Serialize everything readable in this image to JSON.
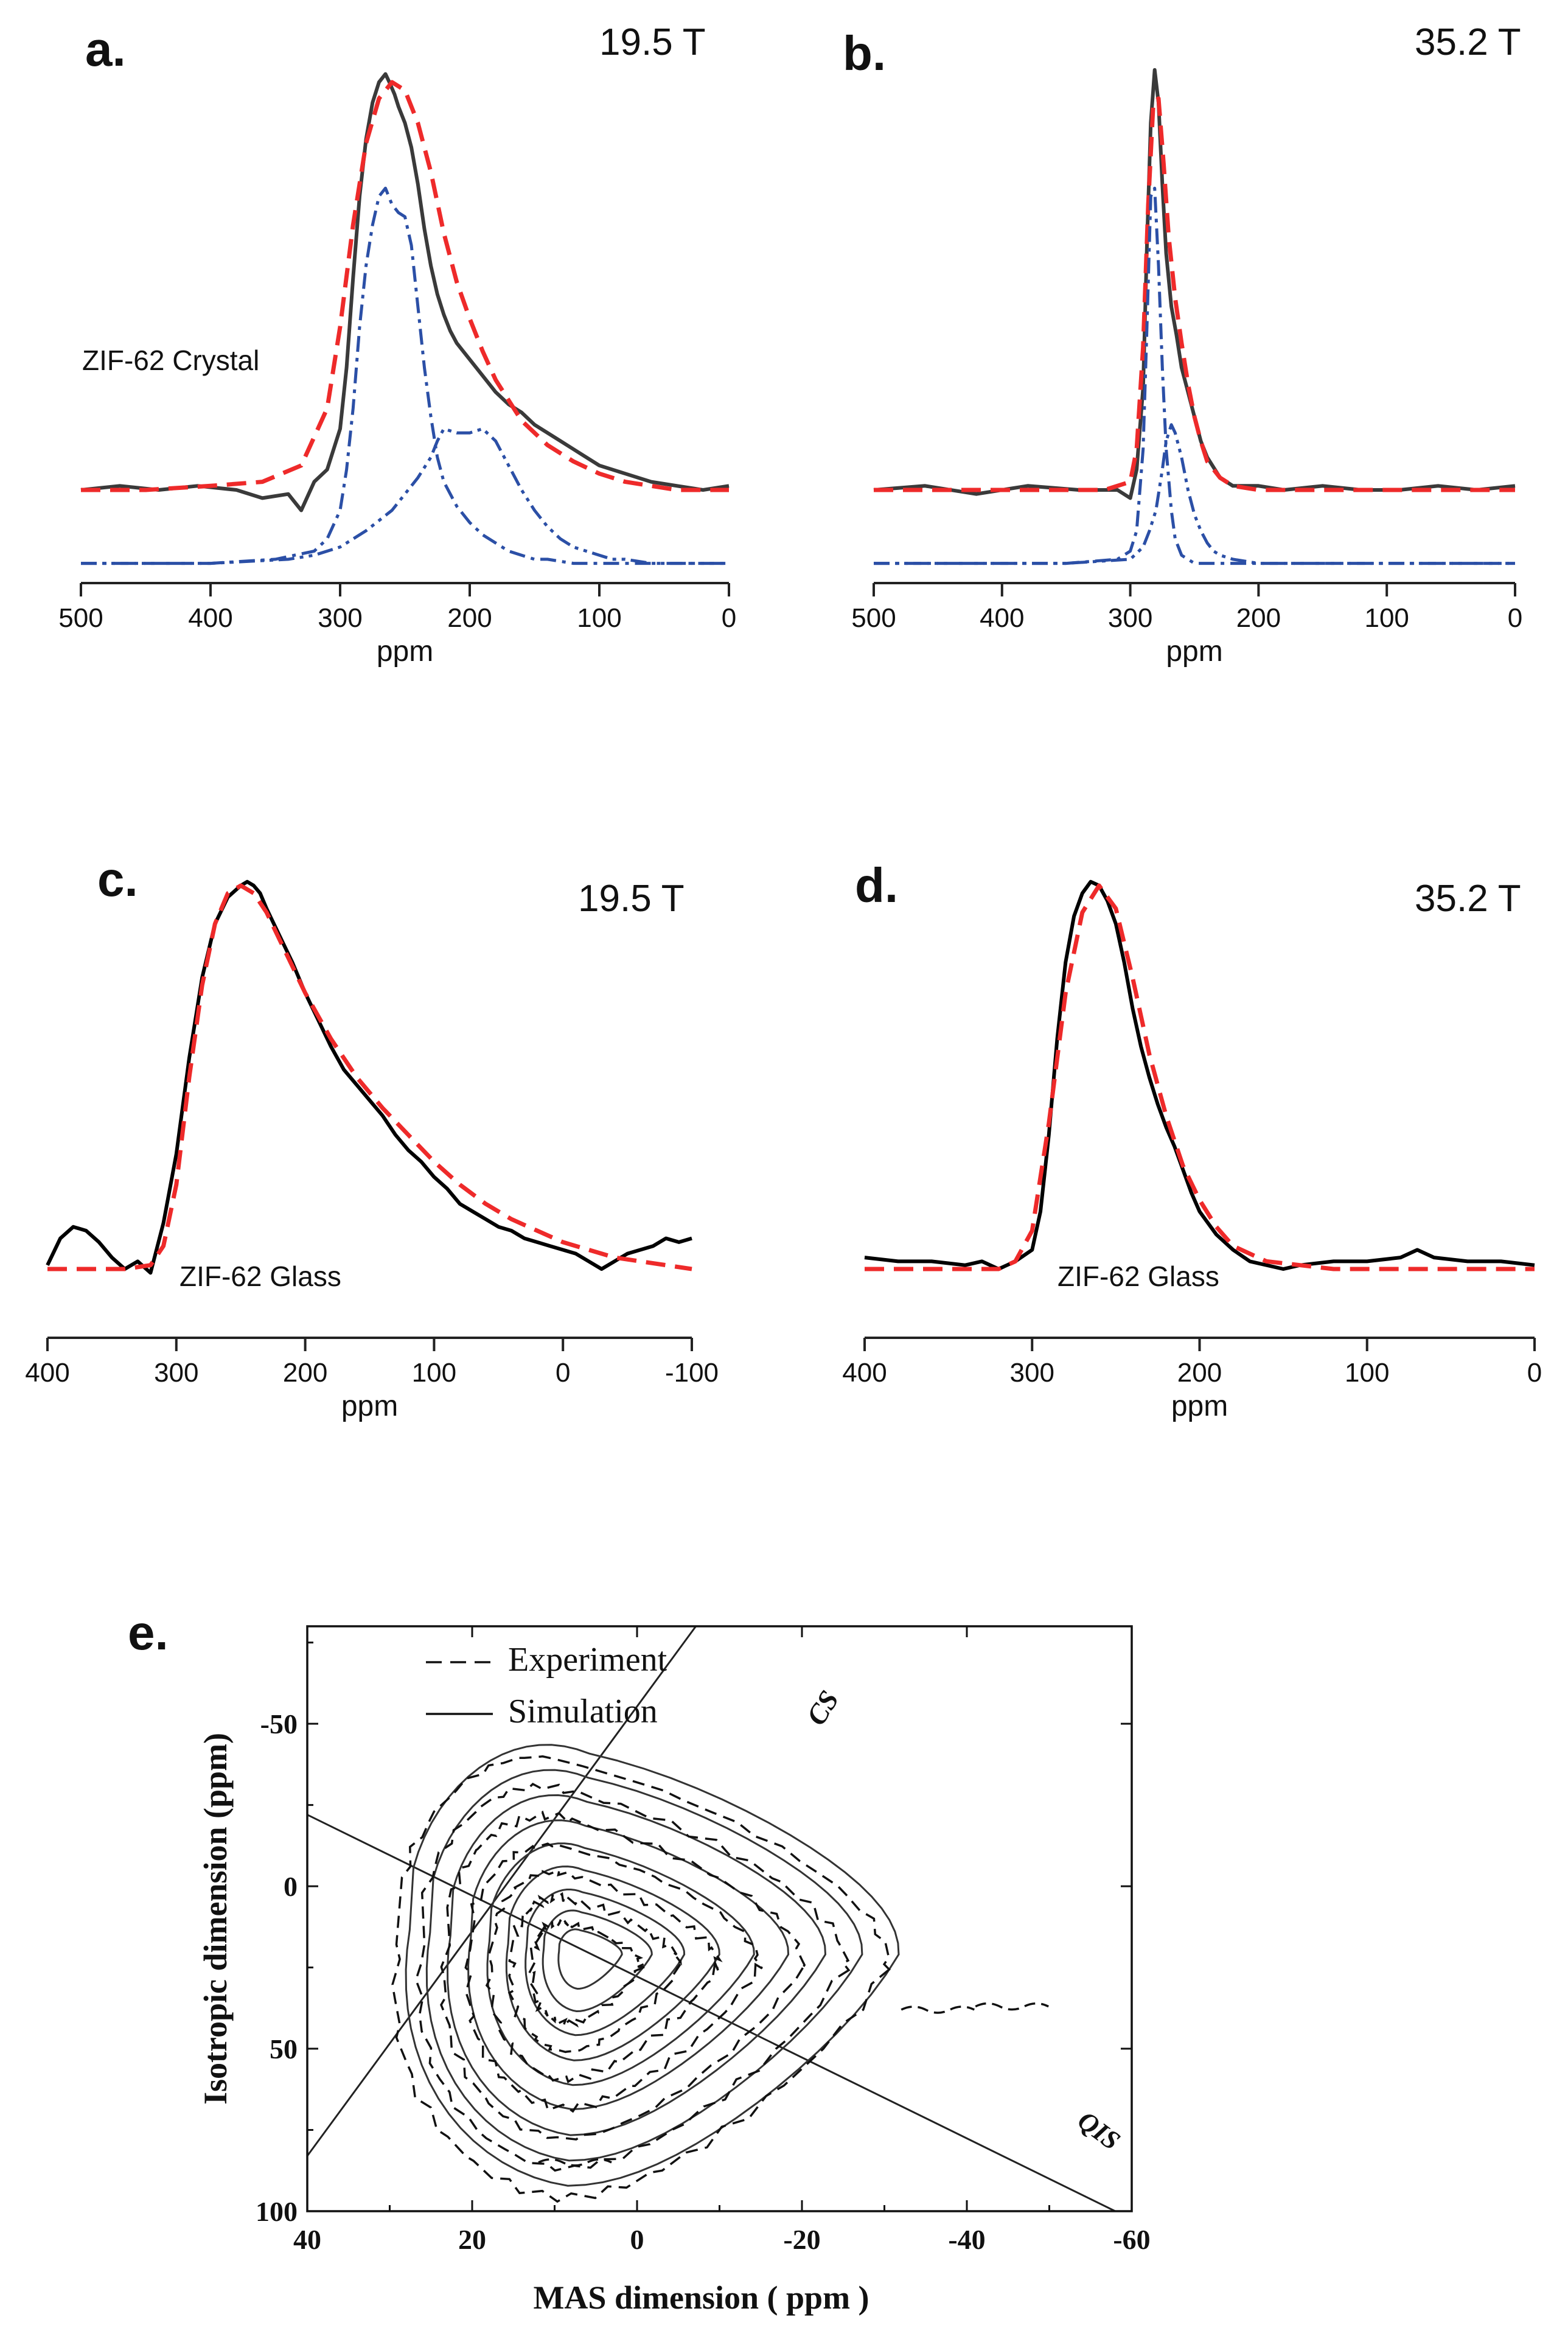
{
  "colors": {
    "experiment": "#3a3a3a",
    "experiment_glass": "#000000",
    "fit": "#ee2a2a",
    "component": "#2b4fa6",
    "axis": "#222222"
  },
  "chart_data": [
    {
      "id": "a",
      "type": "line",
      "panel_label": "a.",
      "field_label": "19.5 T",
      "annotation": "ZIF-62 Crystal",
      "xlabel": "ppm",
      "xlim": [
        500,
        0
      ],
      "x_reversed": true,
      "x_ticks": [
        500,
        400,
        300,
        200,
        100,
        0
      ],
      "grid": false,
      "series": [
        {
          "role": "experiment",
          "style": "solid",
          "color": "#3a3a3a",
          "x": [
            500,
            470,
            440,
            410,
            380,
            360,
            340,
            330,
            320,
            310,
            300,
            295,
            290,
            285,
            280,
            275,
            270,
            265,
            262,
            258,
            255,
            250,
            245,
            240,
            235,
            230,
            225,
            220,
            215,
            210,
            200,
            190,
            180,
            170,
            160,
            150,
            140,
            130,
            120,
            110,
            100,
            80,
            60,
            40,
            20,
            0
          ],
          "y": [
            0.0,
            0.01,
            0.0,
            0.01,
            0.0,
            -0.02,
            -0.01,
            -0.05,
            0.02,
            0.05,
            0.15,
            0.3,
            0.52,
            0.72,
            0.86,
            0.95,
            1.0,
            1.02,
            1.0,
            0.97,
            0.94,
            0.9,
            0.84,
            0.75,
            0.64,
            0.55,
            0.48,
            0.43,
            0.39,
            0.36,
            0.32,
            0.28,
            0.24,
            0.21,
            0.19,
            0.16,
            0.14,
            0.12,
            0.1,
            0.08,
            0.06,
            0.04,
            0.02,
            0.01,
            0.0,
            0.01
          ]
        },
        {
          "role": "fit",
          "style": "dashed",
          "color": "#ee2a2a",
          "x": [
            500,
            450,
            400,
            360,
            330,
            310,
            300,
            290,
            280,
            270,
            260,
            250,
            240,
            230,
            220,
            210,
            200,
            190,
            180,
            170,
            160,
            150,
            140,
            120,
            100,
            80,
            60,
            40,
            20,
            0
          ],
          "y": [
            0.0,
            0.0,
            0.01,
            0.02,
            0.06,
            0.2,
            0.4,
            0.65,
            0.85,
            0.96,
            1.0,
            0.98,
            0.9,
            0.78,
            0.63,
            0.51,
            0.42,
            0.34,
            0.27,
            0.22,
            0.17,
            0.14,
            0.11,
            0.07,
            0.04,
            0.02,
            0.01,
            0.0,
            0.0,
            0.0
          ]
        },
        {
          "role": "component-1",
          "style": "dash-dot",
          "color": "#2b4fa6",
          "x": [
            500,
            400,
            350,
            320,
            310,
            300,
            295,
            290,
            285,
            280,
            275,
            270,
            265,
            260,
            255,
            250,
            245,
            240,
            235,
            230,
            225,
            220,
            210,
            200,
            190,
            180,
            170,
            160,
            150,
            140,
            120,
            100,
            80,
            60,
            40,
            0
          ],
          "y": [
            -0.18,
            -0.18,
            -0.17,
            -0.15,
            -0.12,
            -0.05,
            0.05,
            0.2,
            0.4,
            0.55,
            0.65,
            0.72,
            0.74,
            0.7,
            0.68,
            0.67,
            0.6,
            0.45,
            0.3,
            0.18,
            0.08,
            0.02,
            -0.04,
            -0.08,
            -0.11,
            -0.13,
            -0.15,
            -0.16,
            -0.17,
            -0.17,
            -0.18,
            -0.18,
            -0.18,
            -0.18,
            -0.18,
            -0.18
          ]
        },
        {
          "role": "component-2",
          "style": "dash-dot-dot",
          "color": "#2b4fa6",
          "x": [
            500,
            400,
            340,
            320,
            300,
            280,
            260,
            250,
            240,
            230,
            225,
            220,
            210,
            200,
            190,
            180,
            170,
            160,
            150,
            140,
            130,
            120,
            110,
            100,
            90,
            80,
            60,
            40,
            20,
            0
          ],
          "y": [
            -0.18,
            -0.18,
            -0.17,
            -0.16,
            -0.14,
            -0.1,
            -0.05,
            -0.01,
            0.03,
            0.08,
            0.12,
            0.15,
            0.14,
            0.14,
            0.15,
            0.12,
            0.06,
            0.0,
            -0.05,
            -0.09,
            -0.12,
            -0.14,
            -0.15,
            -0.16,
            -0.17,
            -0.17,
            -0.18,
            -0.18,
            -0.18,
            -0.18
          ]
        }
      ]
    },
    {
      "id": "b",
      "type": "line",
      "panel_label": "b.",
      "field_label": "35.2 T",
      "xlabel": "ppm",
      "xlim": [
        500,
        0
      ],
      "x_reversed": true,
      "x_ticks": [
        500,
        400,
        300,
        200,
        100,
        0
      ],
      "grid": false,
      "series": [
        {
          "role": "experiment",
          "style": "solid",
          "color": "#3a3a3a",
          "x": [
            500,
            460,
            420,
            380,
            340,
            310,
            300,
            295,
            290,
            287,
            284,
            281,
            278,
            275,
            272,
            268,
            264,
            260,
            255,
            250,
            245,
            240,
            230,
            220,
            200,
            180,
            150,
            120,
            90,
            60,
            30,
            0
          ],
          "y": [
            0.0,
            0.01,
            -0.01,
            0.01,
            0.0,
            0.0,
            -0.02,
            0.05,
            0.25,
            0.6,
            0.9,
            1.03,
            0.95,
            0.75,
            0.58,
            0.45,
            0.38,
            0.3,
            0.24,
            0.18,
            0.12,
            0.08,
            0.03,
            0.01,
            0.01,
            0.0,
            0.01,
            0.0,
            0.0,
            0.01,
            0.0,
            0.01
          ]
        },
        {
          "role": "fit",
          "style": "dashed",
          "color": "#ee2a2a",
          "x": [
            500,
            400,
            320,
            300,
            295,
            290,
            286,
            282,
            278,
            274,
            270,
            265,
            260,
            255,
            250,
            245,
            240,
            230,
            220,
            200,
            150,
            100,
            0
          ],
          "y": [
            0.0,
            0.0,
            0.0,
            0.02,
            0.1,
            0.35,
            0.7,
            0.95,
            0.96,
            0.8,
            0.62,
            0.47,
            0.36,
            0.26,
            0.18,
            0.12,
            0.07,
            0.03,
            0.01,
            0.0,
            0.0,
            0.0,
            0.0
          ]
        },
        {
          "role": "component-1",
          "style": "dash-dot",
          "color": "#2b4fa6",
          "x": [
            500,
            350,
            310,
            300,
            295,
            290,
            287,
            284,
            281,
            278,
            275,
            272,
            268,
            265,
            260,
            255,
            250,
            240,
            220,
            0
          ],
          "y": [
            -0.18,
            -0.18,
            -0.17,
            -0.15,
            -0.1,
            0.1,
            0.4,
            0.72,
            0.74,
            0.55,
            0.3,
            0.1,
            -0.05,
            -0.12,
            -0.16,
            -0.17,
            -0.18,
            -0.18,
            -0.18,
            -0.18
          ]
        },
        {
          "role": "component-2",
          "style": "dash-dot-dot",
          "color": "#2b4fa6",
          "x": [
            500,
            350,
            300,
            290,
            285,
            280,
            275,
            272,
            268,
            265,
            260,
            255,
            250,
            245,
            240,
            235,
            230,
            220,
            200,
            0
          ],
          "y": [
            -0.18,
            -0.18,
            -0.17,
            -0.14,
            -0.1,
            -0.05,
            0.05,
            0.12,
            0.16,
            0.14,
            0.08,
            0.0,
            -0.06,
            -0.1,
            -0.13,
            -0.15,
            -0.16,
            -0.17,
            -0.18,
            -0.18
          ]
        }
      ]
    },
    {
      "id": "c",
      "type": "line",
      "panel_label": "c.",
      "field_label": "19.5 T",
      "annotation": "ZIF-62 Glass",
      "xlabel": "ppm",
      "xlim": [
        400,
        -100
      ],
      "x_reversed": true,
      "x_ticks": [
        400,
        300,
        200,
        100,
        0,
        -100
      ],
      "grid": false,
      "series": [
        {
          "role": "experiment",
          "style": "solid",
          "color": "#000000",
          "x": [
            400,
            390,
            380,
            370,
            360,
            350,
            340,
            330,
            320,
            310,
            300,
            290,
            280,
            270,
            260,
            250,
            245,
            240,
            235,
            230,
            220,
            210,
            200,
            190,
            180,
            170,
            160,
            150,
            140,
            130,
            120,
            110,
            100,
            90,
            80,
            70,
            60,
            50,
            40,
            30,
            20,
            10,
            0,
            -10,
            -20,
            -30,
            -40,
            -50,
            -60,
            -70,
            -80,
            -90,
            -100
          ],
          "y": [
            0.01,
            0.08,
            0.11,
            0.1,
            0.07,
            0.03,
            0.0,
            0.02,
            -0.01,
            0.12,
            0.3,
            0.55,
            0.76,
            0.9,
            0.97,
            1.0,
            1.01,
            1.0,
            0.98,
            0.94,
            0.87,
            0.8,
            0.72,
            0.65,
            0.58,
            0.52,
            0.48,
            0.44,
            0.4,
            0.35,
            0.31,
            0.28,
            0.24,
            0.21,
            0.17,
            0.15,
            0.13,
            0.11,
            0.1,
            0.08,
            0.07,
            0.06,
            0.05,
            0.04,
            0.02,
            0.0,
            0.02,
            0.04,
            0.05,
            0.06,
            0.08,
            0.07,
            0.08
          ]
        },
        {
          "role": "fit",
          "style": "dashed",
          "color": "#ee2a2a",
          "x": [
            400,
            380,
            360,
            340,
            320,
            310,
            300,
            290,
            280,
            270,
            260,
            250,
            240,
            230,
            220,
            200,
            180,
            160,
            140,
            120,
            100,
            80,
            60,
            40,
            20,
            0,
            -20,
            -40,
            -60,
            -80,
            -100
          ],
          "y": [
            0.0,
            0.0,
            0.0,
            0.0,
            0.01,
            0.06,
            0.22,
            0.5,
            0.74,
            0.9,
            0.98,
            1.0,
            0.98,
            0.93,
            0.86,
            0.72,
            0.6,
            0.5,
            0.42,
            0.35,
            0.28,
            0.22,
            0.17,
            0.13,
            0.1,
            0.07,
            0.05,
            0.03,
            0.02,
            0.01,
            0.0
          ]
        }
      ]
    },
    {
      "id": "d",
      "type": "line",
      "panel_label": "d.",
      "field_label": "35.2 T",
      "annotation": "ZIF-62 Glass",
      "xlabel": "ppm",
      "xlim": [
        400,
        0
      ],
      "x_reversed": true,
      "x_ticks": [
        400,
        300,
        200,
        100,
        0
      ],
      "grid": false,
      "series": [
        {
          "role": "experiment",
          "style": "solid",
          "color": "#000000",
          "x": [
            400,
            380,
            360,
            340,
            330,
            320,
            310,
            300,
            295,
            290,
            285,
            280,
            275,
            270,
            265,
            260,
            255,
            250,
            245,
            240,
            235,
            230,
            225,
            220,
            215,
            210,
            205,
            200,
            190,
            180,
            170,
            160,
            150,
            140,
            120,
            100,
            80,
            70,
            60,
            40,
            20,
            0
          ],
          "y": [
            0.03,
            0.02,
            0.02,
            0.01,
            0.02,
            0.0,
            0.02,
            0.05,
            0.15,
            0.35,
            0.6,
            0.8,
            0.92,
            0.98,
            1.01,
            1.0,
            0.96,
            0.9,
            0.8,
            0.68,
            0.58,
            0.5,
            0.43,
            0.37,
            0.32,
            0.26,
            0.2,
            0.15,
            0.09,
            0.05,
            0.02,
            0.01,
            0.0,
            0.01,
            0.02,
            0.02,
            0.03,
            0.05,
            0.03,
            0.02,
            0.02,
            0.01
          ]
        },
        {
          "role": "fit",
          "style": "dashed",
          "color": "#ee2a2a",
          "x": [
            400,
            350,
            320,
            310,
            300,
            290,
            280,
            270,
            260,
            250,
            240,
            230,
            220,
            210,
            200,
            190,
            180,
            160,
            140,
            120,
            100,
            50,
            0
          ],
          "y": [
            0.0,
            0.0,
            0.0,
            0.02,
            0.1,
            0.38,
            0.72,
            0.93,
            1.0,
            0.94,
            0.76,
            0.56,
            0.4,
            0.27,
            0.18,
            0.11,
            0.06,
            0.02,
            0.01,
            0.0,
            0.0,
            0.0,
            0.0
          ]
        }
      ]
    },
    {
      "id": "e",
      "type": "contour",
      "panel_label": "e.",
      "xlabel": "MAS dimension ( ppm )",
      "ylabel": "Isotropic dimension (ppm)",
      "xlim": [
        40,
        -60
      ],
      "ylim": [
        -80,
        100
      ],
      "x_reversed": true,
      "y_reversed": true,
      "x_ticks": [
        40,
        20,
        0,
        -20,
        -40,
        -60
      ],
      "y_ticks": [
        -50,
        0,
        50,
        100
      ],
      "grid": false,
      "legend": {
        "position": "top-left",
        "items": [
          {
            "label": "Experiment",
            "style": "dashed"
          },
          {
            "label": "Simulation",
            "style": "solid"
          }
        ]
      },
      "lines": [
        {
          "label": "CS",
          "x": [
            40,
            -8
          ],
          "y": [
            83,
            -83
          ]
        },
        {
          "label": "QIS",
          "x": [
            40,
            -58
          ],
          "y": [
            -22,
            100
          ]
        }
      ],
      "simulation_levels": [
        1.0,
        0.88,
        0.76,
        0.64,
        0.53,
        0.42,
        0.31,
        0.21,
        0.12
      ],
      "experiment_levels": [
        1.0,
        0.86,
        0.72,
        0.58,
        0.45,
        0.33,
        0.21
      ],
      "experiment_outliers": [
        {
          "x": 9,
          "y": 85
        },
        {
          "x": -35,
          "y": 38
        },
        {
          "x": -44,
          "y": 37
        }
      ]
    }
  ]
}
